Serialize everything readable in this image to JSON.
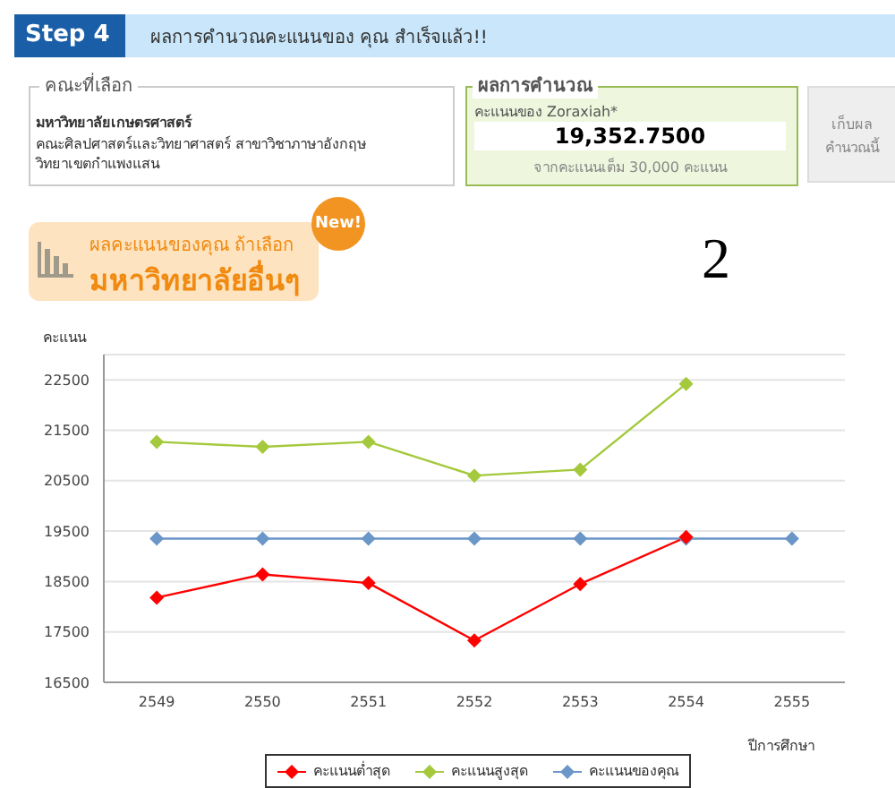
{
  "chart_data": {
    "type": "line",
    "ylabel": "คะแนน",
    "xlabel": "ปีการศึกษา",
    "annotations": [
      "Step 4",
      "ผลการคำนวณคะแนนของ คุณ สำเร็จแล้ว!!",
      "คณะที่เลือก",
      "มหาวิทยาลัยเกษตรศาสตร์",
      "คณะศิลปศาสตร์และวิทยาศาสตร์ สาขาวิชาภาษาอังกฤษ",
      "วิทยาเขตกำแพงแสน",
      "ผลการคำนวณ",
      "คะแนนของ Zoraxiah*",
      "19,352.7500",
      "จากคะแนนเต็ม 30,000 คะแนน",
      "เก็บผล คำนวณนี้",
      "New!",
      "ผลคะแนนของคุณ ถ้าเลือก",
      "มหาวิทยาลัยอื่นๆ",
      "2"
    ],
    "categories": [
      "2549",
      "2550",
      "2551",
      "2552",
      "2553",
      "2554",
      "2555"
    ],
    "series": [
      {
        "name": "คะแนนต่ำสุด",
        "color": "#ff0000",
        "values": [
          18180,
          18640,
          18470,
          17330,
          18450,
          19380,
          null
        ]
      },
      {
        "name": "คะแนนสูงสุด",
        "color": "#a4c93c",
        "values": [
          21270,
          21170,
          21270,
          20600,
          20720,
          22420,
          null
        ]
      },
      {
        "name": "คะแนนของคุณ",
        "color": "#6a96c8",
        "values": [
          19350,
          19350,
          19350,
          19350,
          19350,
          19350,
          19350
        ]
      }
    ],
    "ylim": [
      16500,
      23000
    ],
    "yticks": [
      16500,
      17500,
      18500,
      19500,
      20500,
      21500,
      22500
    ],
    "grid": "y",
    "legend": "bottom",
    "marker": "diamond",
    "line_style": "solid"
  }
}
